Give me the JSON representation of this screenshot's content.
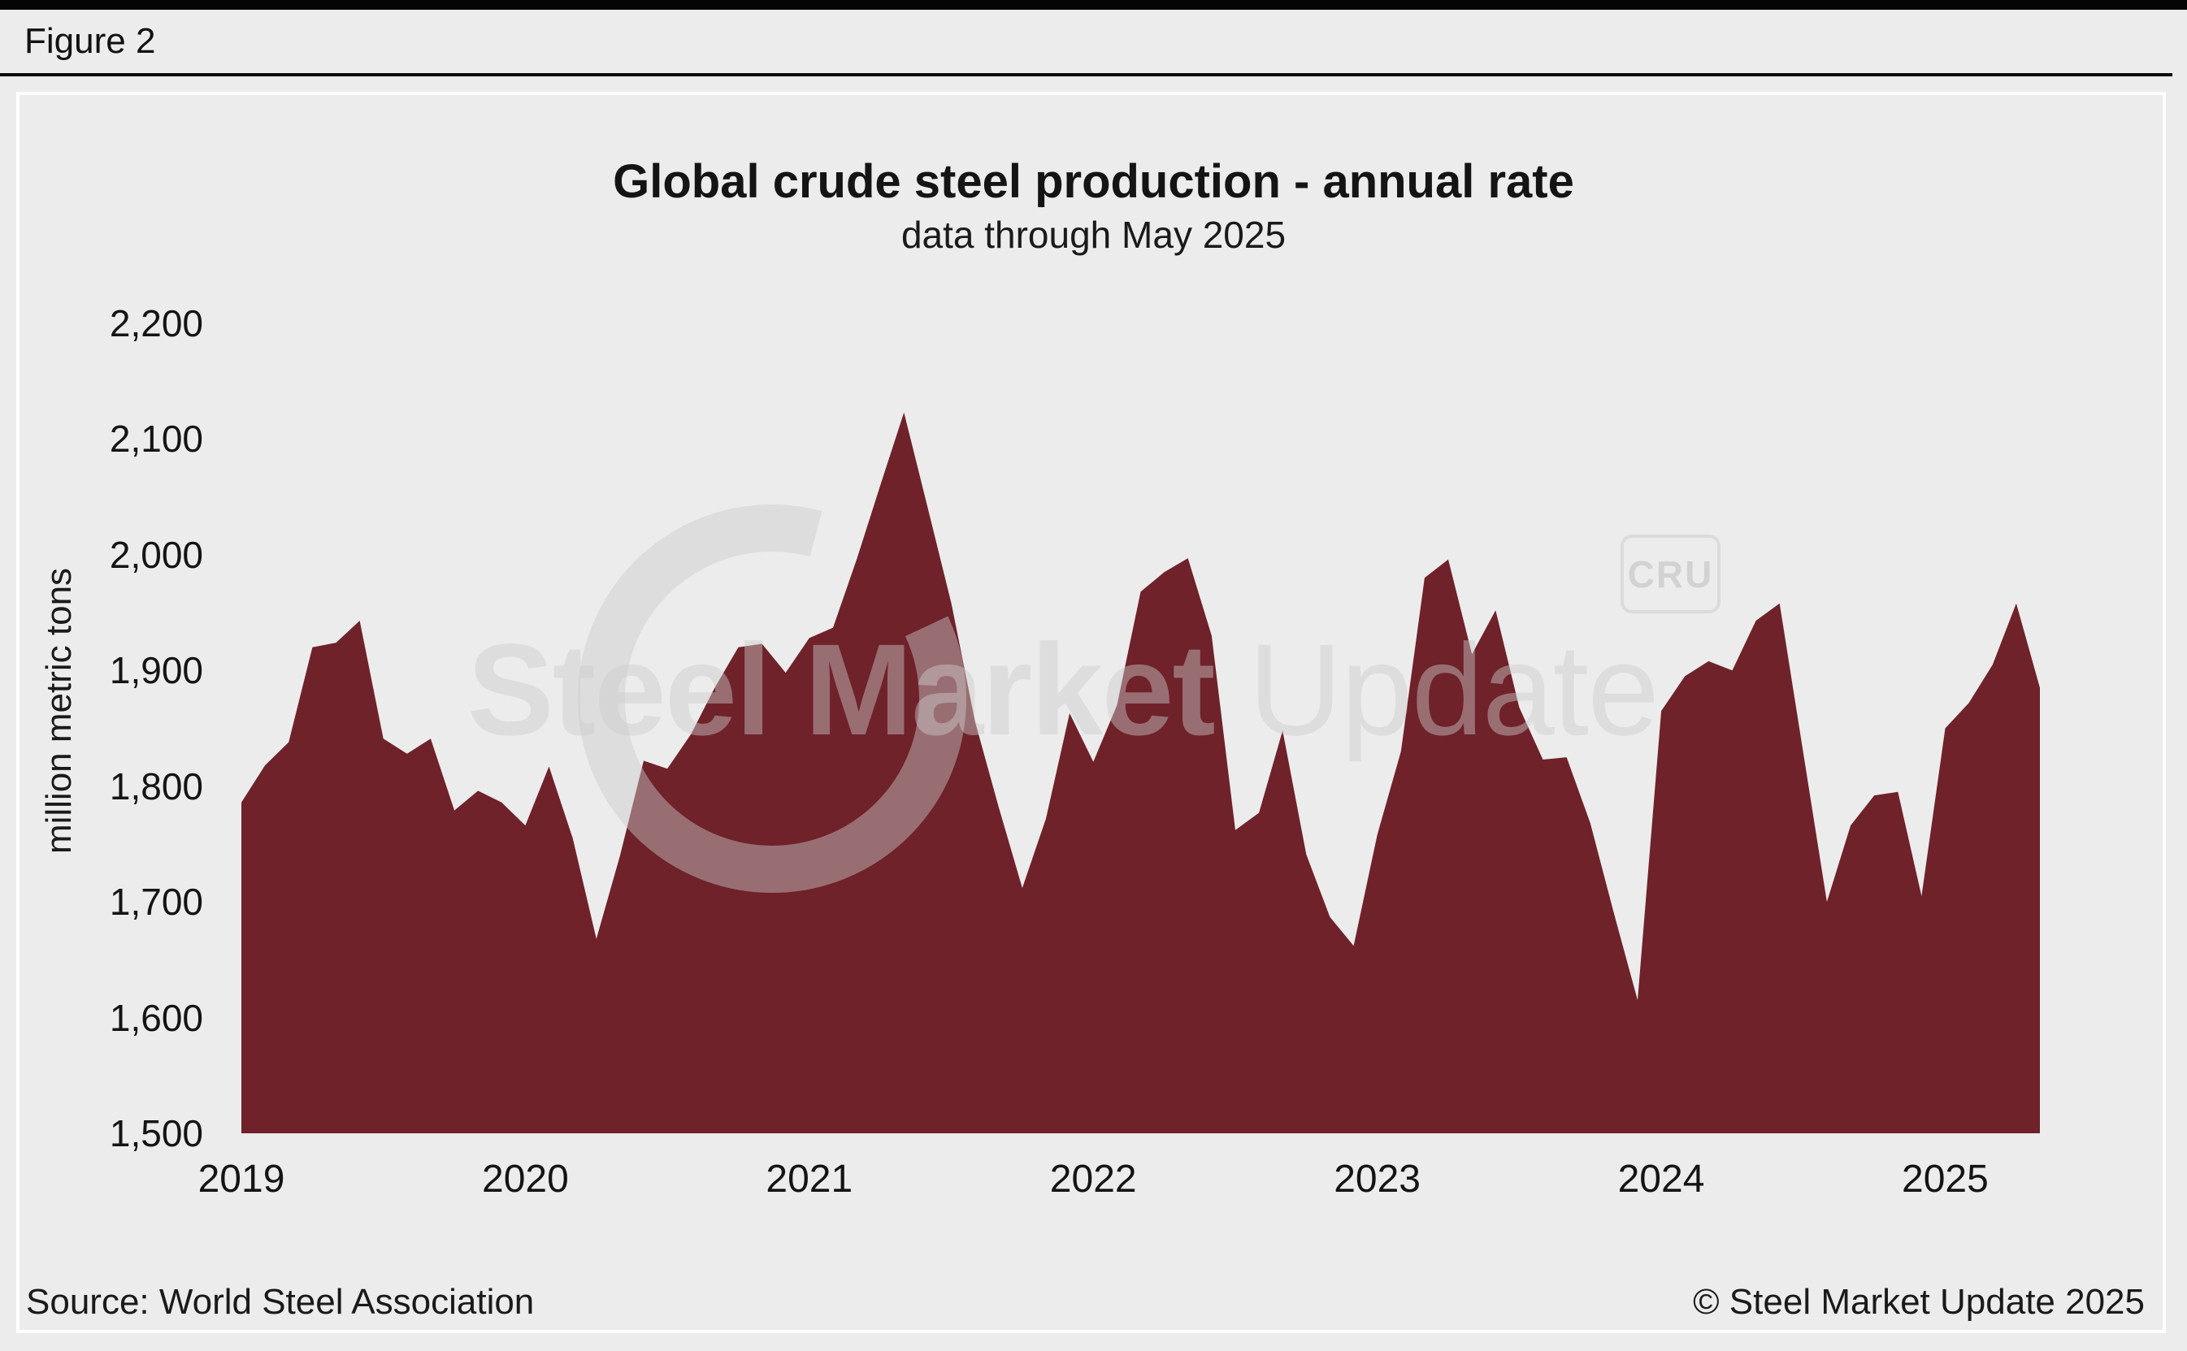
{
  "page": {
    "figure_label": "Figure 2"
  },
  "chart_data": {
    "type": "area",
    "title": "Global crude steel production - annual rate",
    "subtitle": "data through May 2025",
    "ylabel": "million metric tons",
    "xlabel": "",
    "ylim": [
      1500,
      2200
    ],
    "grid": false,
    "legend": "none",
    "area_color": "#6f222a",
    "background_color": "#ececec",
    "y_ticks": [
      {
        "label": "2,200",
        "value": 2200
      },
      {
        "label": "2,100",
        "value": 2100
      },
      {
        "label": "2,000",
        "value": 2000
      },
      {
        "label": "1,900",
        "value": 1900
      },
      {
        "label": "1,800",
        "value": 1800
      },
      {
        "label": "1,700",
        "value": 1700
      },
      {
        "label": "1,600",
        "value": 1600
      },
      {
        "label": "1,500",
        "value": 1500
      }
    ],
    "x_ticks": [
      {
        "label": "2019",
        "year": 2019
      },
      {
        "label": "2020",
        "year": 2020
      },
      {
        "label": "2021",
        "year": 2021
      },
      {
        "label": "2022",
        "year": 2022
      },
      {
        "label": "2023",
        "year": 2023
      },
      {
        "label": "2024",
        "year": 2024
      },
      {
        "label": "2025",
        "year": 2025
      }
    ],
    "series_name": "Global crude steel production, annualized rate (million metric tons)",
    "x": [
      "2019-01",
      "2019-02",
      "2019-03",
      "2019-04",
      "2019-05",
      "2019-06",
      "2019-07",
      "2019-08",
      "2019-09",
      "2019-10",
      "2019-11",
      "2019-12",
      "2020-01",
      "2020-02",
      "2020-03",
      "2020-04",
      "2020-05",
      "2020-06",
      "2020-07",
      "2020-08",
      "2020-09",
      "2020-10",
      "2020-11",
      "2020-12",
      "2021-01",
      "2021-02",
      "2021-03",
      "2021-04",
      "2021-05",
      "2021-06",
      "2021-07",
      "2021-08",
      "2021-09",
      "2021-10",
      "2021-11",
      "2021-12",
      "2022-01",
      "2022-02",
      "2022-03",
      "2022-04",
      "2022-05",
      "2022-06",
      "2022-07",
      "2022-08",
      "2022-09",
      "2022-10",
      "2022-11",
      "2022-12",
      "2023-01",
      "2023-02",
      "2023-03",
      "2023-04",
      "2023-05",
      "2023-06",
      "2023-07",
      "2023-08",
      "2023-09",
      "2023-10",
      "2023-11",
      "2023-12",
      "2024-01",
      "2024-02",
      "2024-03",
      "2024-04",
      "2024-05",
      "2024-06",
      "2024-07",
      "2024-08",
      "2024-09",
      "2024-10",
      "2024-11",
      "2024-12",
      "2025-01",
      "2025-02",
      "2025-03",
      "2025-04",
      "2025-05"
    ],
    "values": [
      1786,
      1818,
      1838,
      1920,
      1924,
      1943,
      1841,
      1828,
      1841,
      1779,
      1796,
      1786,
      1766,
      1817,
      1755,
      1668,
      1740,
      1822,
      1815,
      1845,
      1885,
      1920,
      1923,
      1898,
      1928,
      1937,
      1996,
      2060,
      2123,
      2041,
      1958,
      1856,
      1782,
      1712,
      1772,
      1863,
      1821,
      1870,
      1968,
      1985,
      1997,
      1930,
      1762,
      1777,
      1848,
      1741,
      1687,
      1662,
      1758,
      1830,
      1980,
      1996,
      1914,
      1952,
      1868,
      1823,
      1825,
      1768,
      1690,
      1615,
      1865,
      1895,
      1908,
      1900,
      1943,
      1958,
      1829,
      1700,
      1766,
      1792,
      1795,
      1705,
      1850,
      1872,
      1905,
      1958,
      1885
    ]
  },
  "watermark": {
    "text_bold": "Steel Market",
    "text_light": "Update",
    "cru_label": "CRU"
  },
  "footer": {
    "source": "Source: World Steel Association",
    "copyright": "© Steel Market Update 2025"
  }
}
